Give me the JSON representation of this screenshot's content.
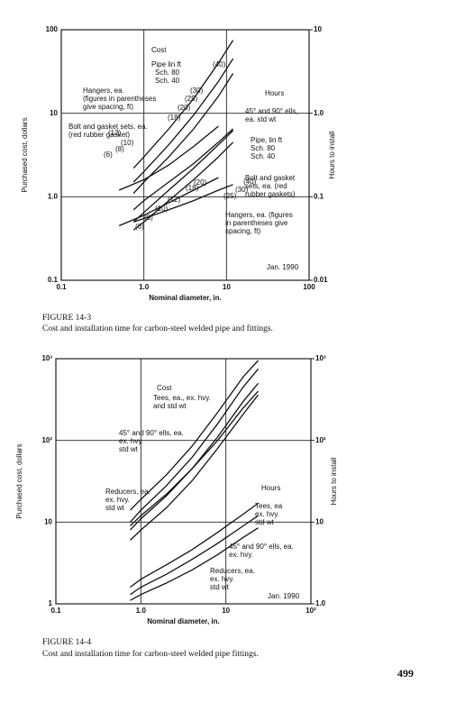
{
  "chart_data": [
    {
      "type": "line",
      "x_label": "Nominal diameter, in.",
      "y_label": "Purchased cost, dollars",
      "y2_label": "Hours to install",
      "log_x": true,
      "log_y": true,
      "grid": true,
      "color": "#111111",
      "xlim": [
        0.1,
        100
      ],
      "ylim": [
        0.1,
        100
      ],
      "y2lim": [
        0.01,
        10
      ],
      "xticks": [
        0.1,
        {
          "value": 1,
          "label": "1.0"
        },
        10,
        100
      ],
      "yticks": [
        0.1,
        {
          "value": 1,
          "label": "1.0"
        },
        10,
        100
      ],
      "y2ticks": [
        0.01,
        0.1,
        {
          "value": 1,
          "label": "1.0"
        },
        10
      ],
      "series": [
        {
          "x": [
            0.75,
            1,
            2,
            4,
            8,
            12
          ],
          "values": [
            2.2,
            3,
            6.5,
            15,
            40,
            75
          ]
        },
        {
          "x": [
            0.75,
            1,
            2,
            4,
            8,
            12
          ],
          "values": [
            1.5,
            2,
            4.2,
            9.5,
            24,
            45
          ]
        },
        {
          "x": [
            0.75,
            1,
            2,
            4,
            8,
            12
          ],
          "values": [
            1.1,
            1.5,
            3,
            6.5,
            16,
            30
          ]
        },
        {
          "x": [
            0.5,
            1,
            2,
            4,
            8
          ],
          "values": [
            1.2,
            1.6,
            2.4,
            4,
            7
          ]
        },
        {
          "x": [
            0.75,
            1,
            2,
            4,
            8,
            12
          ],
          "values": [
            0.7,
            0.9,
            1.5,
            2.5,
            4.5,
            6.5
          ]
        },
        {
          "axis": "y2",
          "x": [
            0.75,
            1,
            2,
            4,
            8,
            12
          ],
          "values": [
            0.05,
            0.065,
            0.12,
            0.22,
            0.42,
            0.62
          ]
        },
        {
          "axis": "y2",
          "x": [
            0.75,
            1,
            2,
            4,
            8,
            12
          ],
          "values": [
            0.04,
            0.05,
            0.09,
            0.16,
            0.3,
            0.45
          ]
        },
        {
          "axis": "y2",
          "x": [
            0.5,
            1,
            2,
            4,
            8
          ],
          "values": [
            0.045,
            0.06,
            0.085,
            0.12,
            0.17
          ]
        },
        {
          "axis": "y2",
          "x": [
            0.75,
            1,
            2,
            4,
            8,
            12
          ],
          "values": [
            0.05,
            0.055,
            0.07,
            0.09,
            0.12,
            0.14
          ]
        }
      ],
      "annotations": [
        [
          "Cost"
        ],
        [
          "Pipe lin ft"
        ],
        [
          "Sch. 80"
        ],
        [
          "Sch. 40"
        ],
        [
          "Hangers, ea.",
          "(figures in parentheses",
          "give spacing, ft)"
        ],
        [
          "Bolt and gasket sets, ea.",
          "(red rubber gasket)"
        ],
        [
          "Hours"
        ],
        [
          "45° and 90° ells,",
          "ea. std wt"
        ],
        [
          "Pipe, lin ft",
          "Sch. 80",
          "Sch. 40"
        ],
        [
          "Bolt and gasket",
          "sets, ea. (red",
          "rubber gaskets)"
        ],
        [
          "Hangers, ea. (figures",
          "in parentheses give",
          "spacing, ft)"
        ],
        [
          "Jan. 1990"
        ],
        [
          "(40)"
        ],
        [
          "(30)"
        ],
        [
          "(25)"
        ],
        [
          "(20)"
        ],
        [
          "(18)"
        ],
        [
          "(12)"
        ],
        [
          "(10)"
        ],
        [
          "(8)"
        ],
        [
          "(6)"
        ],
        [
          "(40)"
        ],
        [
          "(30)"
        ],
        [
          "(25)"
        ],
        [
          "(20)"
        ],
        [
          "(18)"
        ],
        [
          "(12)"
        ],
        [
          "(10)"
        ],
        [
          "(8)"
        ],
        [
          "(6)"
        ]
      ]
    },
    {
      "type": "line",
      "x_label": "Nominal diameter, in.",
      "y_label": "Purchased cost, dollars",
      "y2_label": "Hours to install",
      "log_x": true,
      "log_y": true,
      "grid": true,
      "color": "#111111",
      "xlim": [
        0.1,
        100
      ],
      "ylim": [
        1,
        1000
      ],
      "y2lim": [
        1,
        1000
      ],
      "xticks": [
        0.1,
        {
          "value": 1,
          "label": "1.0"
        },
        10,
        {
          "value": 100,
          "label": "10²"
        }
      ],
      "yticks": [
        1,
        10,
        {
          "value": 100,
          "label": "10²"
        },
        {
          "value": 1000,
          "label": "10³"
        }
      ],
      "y2ticks": [
        {
          "value": 1,
          "label": "1.0"
        },
        10,
        {
          "value": 100,
          "label": "10²"
        },
        {
          "value": 1000,
          "label": "10³"
        }
      ],
      "series": [
        {
          "x": [
            0.75,
            1,
            2,
            4,
            8,
            16,
            24
          ],
          "values": [
            14,
            19,
            38,
            85,
            220,
            600,
            950
          ]
        },
        {
          "x": [
            0.75,
            1,
            2,
            4,
            8,
            16,
            24
          ],
          "values": [
            10,
            14,
            28,
            62,
            160,
            450,
            750
          ]
        },
        {
          "x": [
            0.75,
            1,
            2,
            4,
            8,
            16,
            24
          ],
          "values": [
            8,
            11,
            21,
            45,
            110,
            300,
            500
          ]
        },
        {
          "x": [
            0.75,
            1,
            2,
            4,
            8,
            16,
            24
          ],
          "values": [
            6,
            8,
            15,
            32,
            80,
            210,
            360
          ]
        },
        {
          "x": [
            0.75,
            1,
            2,
            4,
            8,
            16,
            24
          ],
          "values": [
            9,
            12,
            22,
            45,
            100,
            250,
            400
          ]
        },
        {
          "axis": "y2",
          "x": [
            0.75,
            1,
            2,
            4,
            8,
            16,
            24
          ],
          "values": [
            1.6,
            2,
            3,
            4.6,
            7.5,
            12.5,
            17
          ]
        },
        {
          "axis": "y2",
          "x": [
            0.75,
            1,
            2,
            4,
            8,
            16,
            24
          ],
          "values": [
            1.3,
            1.6,
            2.3,
            3.5,
            5.5,
            9,
            12
          ]
        },
        {
          "axis": "y2",
          "x": [
            0.75,
            1,
            2,
            4,
            8,
            16,
            24
          ],
          "values": [
            1.1,
            1.3,
            1.8,
            2.6,
            4,
            6.5,
            8.5
          ]
        }
      ],
      "annotations": [
        [
          "Cost"
        ],
        [
          "Tees, ea., ex. hvy.",
          "and std wt"
        ],
        [
          "45° and 90° ells, ea.",
          "ex. hvy.",
          "std wt"
        ],
        [
          "Reducers, ea.",
          "ex. hvy.",
          "std wt"
        ],
        [
          "Hours"
        ],
        [
          "Tees, ea",
          "ex. hvy.",
          "std wt"
        ],
        [
          "45° and 90° ells, ea.",
          "ex. hvy."
        ],
        [
          "Reducers, ea.",
          "ex. hvy.",
          "std wt"
        ],
        [
          "Jan. 1990"
        ]
      ]
    }
  ],
  "captions": [
    {
      "label": "FIGURE 14-3",
      "text": "Cost and installation time for carbon-steel welded pipe and fittings."
    },
    {
      "label": "FIGURE 14-4",
      "text": "Cost and installation time for carbon-steel welded pipe fittings."
    }
  ],
  "page_number": "499"
}
